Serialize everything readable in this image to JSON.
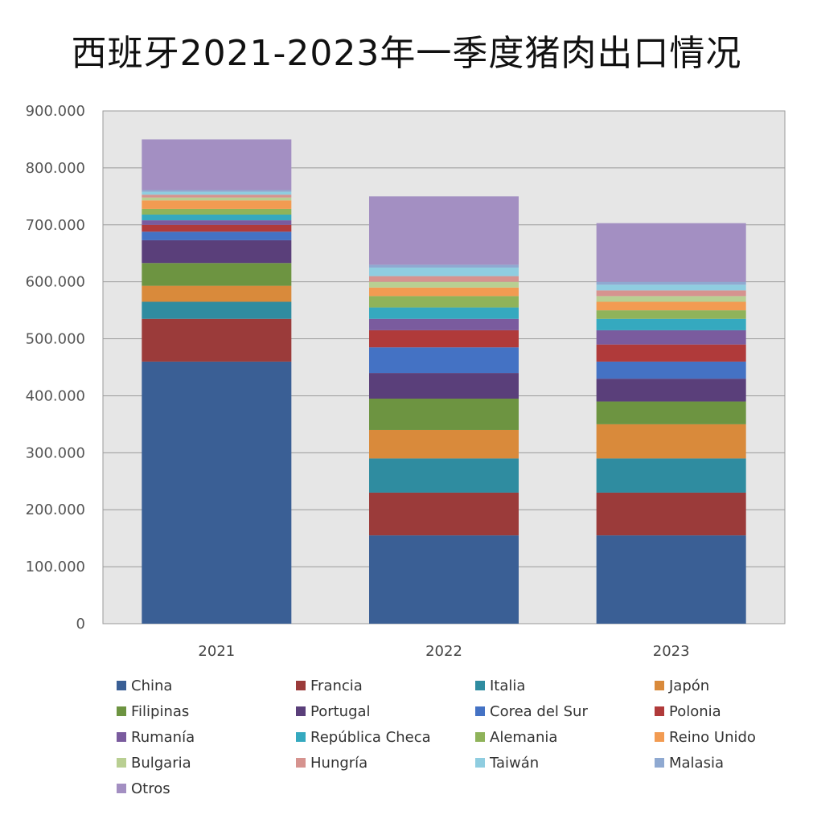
{
  "title": "西班牙2021-2023年一季度猪肉出口情况",
  "chart_data": {
    "type": "bar",
    "stacked": true,
    "categories": [
      "2021",
      "2022",
      "2023"
    ],
    "ylim": [
      0,
      900000
    ],
    "yticks": [
      "0",
      "100.000",
      "200.000",
      "300.000",
      "400.000",
      "500.000",
      "600.000",
      "700.000",
      "800.000",
      "900.000"
    ],
    "ytick_values": [
      0,
      100000,
      200000,
      300000,
      400000,
      500000,
      600000,
      700000,
      800000,
      900000
    ],
    "grid": true,
    "legend_position": "bottom",
    "series": [
      {
        "name": "China",
        "color": "#3a5f95",
        "values": [
          460000,
          155000,
          155000
        ]
      },
      {
        "name": "Francia",
        "color": "#9b3b3a",
        "values": [
          75000,
          75000,
          75000
        ]
      },
      {
        "name": "Italia",
        "color": "#2f8ca0",
        "values": [
          30000,
          60000,
          60000
        ]
      },
      {
        "name": "Japón",
        "color": "#d98a3b",
        "values": [
          28000,
          50000,
          60000
        ]
      },
      {
        "name": "Filipinas",
        "color": "#6d9441",
        "values": [
          40000,
          55000,
          40000
        ]
      },
      {
        "name": "Portugal",
        "color": "#5a3f7a",
        "values": [
          40000,
          45000,
          40000
        ]
      },
      {
        "name": "Corea del Sur",
        "color": "#4472c4",
        "values": [
          15000,
          45000,
          30000
        ]
      },
      {
        "name": "Polonia",
        "color": "#b03a3a",
        "values": [
          12000,
          30000,
          30000
        ]
      },
      {
        "name": "Rumanía",
        "color": "#7a5b9e",
        "values": [
          8000,
          20000,
          25000
        ]
      },
      {
        "name": "República Checa",
        "color": "#35a9bf",
        "values": [
          10000,
          20000,
          20000
        ]
      },
      {
        "name": "Alemania",
        "color": "#8fb35a",
        "values": [
          10000,
          20000,
          15000
        ]
      },
      {
        "name": "Reino Unido",
        "color": "#f29b52",
        "values": [
          15000,
          15000,
          15000
        ]
      },
      {
        "name": "Bulgaria",
        "color": "#b9cf92",
        "values": [
          5000,
          10000,
          10000
        ]
      },
      {
        "name": "Hungría",
        "color": "#d6938f",
        "values": [
          5000,
          10000,
          10000
        ]
      },
      {
        "name": "Taiwán",
        "color": "#8fcde0",
        "values": [
          5000,
          15000,
          10000
        ]
      },
      {
        "name": "Malasia",
        "color": "#8fa9d1",
        "values": [
          3000,
          5000,
          5000
        ]
      },
      {
        "name": "Otros",
        "color": "#a38fc2",
        "values": [
          89000,
          120000,
          103000
        ]
      }
    ]
  }
}
